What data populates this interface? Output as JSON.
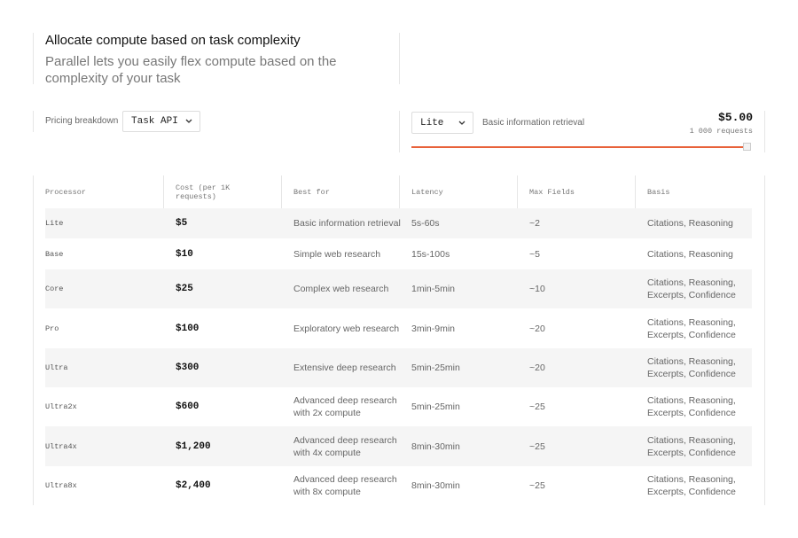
{
  "header": {
    "title": "Allocate compute based on task complexity",
    "subtitle": "Parallel lets you easily flex compute based on the complexity of your task"
  },
  "controls": {
    "label": "Pricing breakdown",
    "api_select": "Task API",
    "processor_select": "Lite",
    "description": "Basic information retrieval",
    "price": "$5.00",
    "price_unit": "1 000 requests"
  },
  "table": {
    "columns": [
      "Processor",
      "Cost (per 1K requests)",
      "Best for",
      "Latency",
      "Max Fields",
      "Basis"
    ],
    "rows": [
      [
        "Lite",
        "$5",
        [
          "Basic information retrieval"
        ],
        "5s-60s",
        "~2",
        [
          "Citations, Reasoning"
        ]
      ],
      [
        "Base",
        "$10",
        [
          "Simple web research"
        ],
        "15s-100s",
        "~5",
        [
          "Citations, Reasoning"
        ]
      ],
      [
        "Core",
        "$25",
        [
          "Complex web research"
        ],
        "1min-5min",
        "~10",
        [
          "Citations, Reasoning,",
          "Excerpts, Confidence"
        ]
      ],
      [
        "Pro",
        "$100",
        [
          "Exploratory web research"
        ],
        "3min-9min",
        "~20",
        [
          "Citations, Reasoning,",
          "Excerpts, Confidence"
        ]
      ],
      [
        "Ultra",
        "$300",
        [
          "Extensive deep research"
        ],
        "5min-25min",
        "~20",
        [
          "Citations, Reasoning,",
          "Excerpts, Confidence"
        ]
      ],
      [
        "Ultra2x",
        "$600",
        [
          "Advanced deep research",
          "with 2x compute"
        ],
        "5min-25min",
        "~25",
        [
          "Citations, Reasoning,",
          "Excerpts, Confidence"
        ]
      ],
      [
        "Ultra4x",
        "$1,200",
        [
          "Advanced deep research",
          "with 4x compute"
        ],
        "8min-30min",
        "~25",
        [
          "Citations, Reasoning,",
          "Excerpts, Confidence"
        ]
      ],
      [
        "Ultra8x",
        "$2,400",
        [
          "Advanced deep research",
          "with 8x compute"
        ],
        "8min-30min",
        "~25",
        [
          "Citations, Reasoning,",
          "Excerpts, Confidence"
        ]
      ]
    ]
  }
}
